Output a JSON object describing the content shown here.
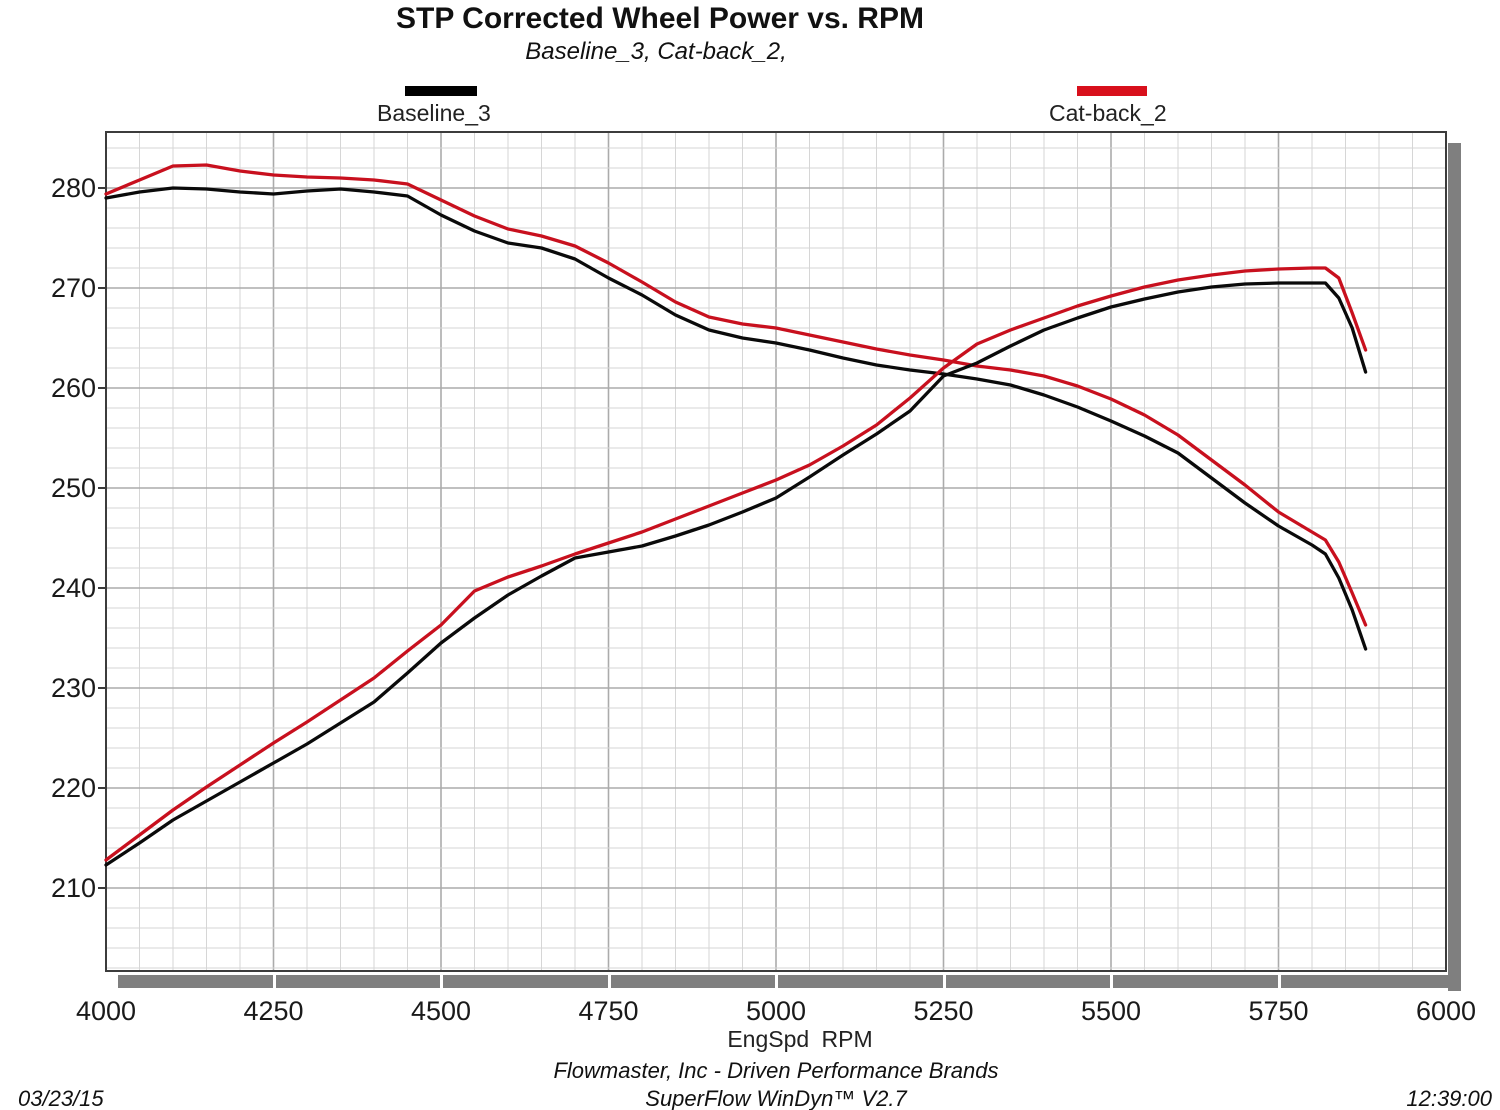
{
  "header": {
    "title": "STP Corrected Wheel Power vs. RPM",
    "subtitle": "Baseline_3, Cat-back_2,"
  },
  "legend": [
    {
      "label": "Baseline_3",
      "color": "#000000"
    },
    {
      "label": "Cat-back_2",
      "color": "#d8101c"
    }
  ],
  "footer": {
    "xlabel": "EngSpd RPM",
    "company": "Flowmaster, Inc - Driven Performance Brands",
    "software": "SuperFlow WinDyn™ V2.7",
    "date": "03/23/15",
    "time": "12:39:00"
  },
  "colors": {
    "baseline": "#0a0a0a",
    "catback": "#c8101e",
    "grid_minor": "#d6d6d6",
    "grid_major": "#ababab",
    "axis_border": "#3c3c3c",
    "shadow": "#7f7f7f"
  },
  "chart_data": {
    "type": "line",
    "title": "STP Corrected Wheel Power vs. RPM",
    "subtitle": "Baseline_3, Cat-back_2,",
    "xlabel": "EngSpd RPM",
    "grid": true,
    "legend_position": "top",
    "axes": {
      "x": {
        "min": 4000,
        "max": 6000,
        "minor_step": 50,
        "major_step": 250
      },
      "y": {
        "min": 201.7,
        "max": 285.6,
        "minor_step": 2,
        "major_step": 10
      }
    },
    "x_ticks": [
      {
        "v": 4000,
        "label": "4000"
      },
      {
        "v": 4250,
        "label": "4250"
      },
      {
        "v": 4500,
        "label": "4500"
      },
      {
        "v": 4750,
        "label": "4750"
      },
      {
        "v": 5000,
        "label": "5000"
      },
      {
        "v": 5250,
        "label": "5250"
      },
      {
        "v": 5500,
        "label": "5500"
      },
      {
        "v": 5750,
        "label": "5750"
      },
      {
        "v": 6000,
        "label": "6000"
      }
    ],
    "y_ticks": [
      {
        "v": 280,
        "label": "280"
      },
      {
        "v": 270,
        "label": "270"
      },
      {
        "v": 260,
        "label": "260"
      },
      {
        "v": 250,
        "label": "250"
      },
      {
        "v": 240,
        "label": "240"
      },
      {
        "v": 230,
        "label": "230"
      },
      {
        "v": 220,
        "label": "220"
      },
      {
        "v": 210,
        "label": "210"
      }
    ],
    "x": [
      4000,
      4050,
      4100,
      4150,
      4200,
      4250,
      4300,
      4350,
      4400,
      4450,
      4500,
      4550,
      4600,
      4650,
      4700,
      4750,
      4800,
      4850,
      4900,
      4950,
      5000,
      5050,
      5100,
      5150,
      5200,
      5250,
      5300,
      5350,
      5400,
      5450,
      5500,
      5550,
      5600,
      5650,
      5700,
      5750,
      5800,
      5820,
      5840,
      5860,
      5880
    ],
    "series": [
      {
        "name": "Baseline_3 upper (descending) curve",
        "color": "#0a0a0a",
        "values": [
          279.0,
          279.6,
          280.0,
          279.9,
          279.6,
          279.4,
          279.7,
          279.9,
          279.6,
          279.2,
          277.3,
          275.7,
          274.5,
          274.0,
          272.9,
          271.0,
          269.3,
          267.3,
          265.8,
          265.0,
          264.5,
          263.8,
          263.0,
          262.3,
          261.8,
          261.4,
          260.9,
          260.3,
          259.3,
          258.1,
          256.7,
          255.2,
          253.5,
          251.0,
          248.5,
          246.2,
          244.3,
          243.4,
          241.0,
          237.8,
          233.9
        ]
      },
      {
        "name": "Cat-back_2 upper (descending) curve",
        "color": "#c8101e",
        "values": [
          279.4,
          280.8,
          282.2,
          282.3,
          281.7,
          281.3,
          281.1,
          281.0,
          280.8,
          280.4,
          278.8,
          277.2,
          275.9,
          275.2,
          274.2,
          272.5,
          270.6,
          268.6,
          267.1,
          266.4,
          266.0,
          265.3,
          264.6,
          263.9,
          263.3,
          262.8,
          262.2,
          261.8,
          261.2,
          260.2,
          258.9,
          257.3,
          255.3,
          252.8,
          250.3,
          247.6,
          245.6,
          244.8,
          242.6,
          239.5,
          236.3
        ]
      },
      {
        "name": "Baseline_3 lower (ascending) curve",
        "color": "#0a0a0a",
        "values": [
          212.3,
          214.5,
          216.8,
          218.7,
          220.6,
          222.5,
          224.4,
          226.5,
          228.6,
          231.5,
          234.5,
          237.0,
          239.3,
          241.2,
          243.0,
          243.6,
          244.2,
          245.2,
          246.3,
          247.6,
          249.0,
          251.1,
          253.3,
          255.4,
          257.7,
          261.2,
          262.5,
          264.2,
          265.8,
          267.0,
          268.1,
          268.9,
          269.6,
          270.1,
          270.4,
          270.5,
          270.5,
          270.5,
          269.0,
          266.0,
          261.6
        ]
      },
      {
        "name": "Cat-back_2 lower (ascending) curve",
        "color": "#c8101e",
        "values": [
          212.8,
          215.3,
          217.8,
          220.1,
          222.3,
          224.5,
          226.6,
          228.8,
          231.0,
          233.7,
          236.3,
          239.7,
          241.1,
          242.2,
          243.4,
          244.5,
          245.6,
          246.9,
          248.2,
          249.5,
          250.8,
          252.3,
          254.2,
          256.3,
          259.0,
          262.0,
          264.4,
          265.8,
          267.0,
          268.2,
          269.2,
          270.1,
          270.8,
          271.3,
          271.7,
          271.9,
          272.0,
          272.0,
          271.0,
          267.5,
          263.8
        ]
      }
    ]
  }
}
